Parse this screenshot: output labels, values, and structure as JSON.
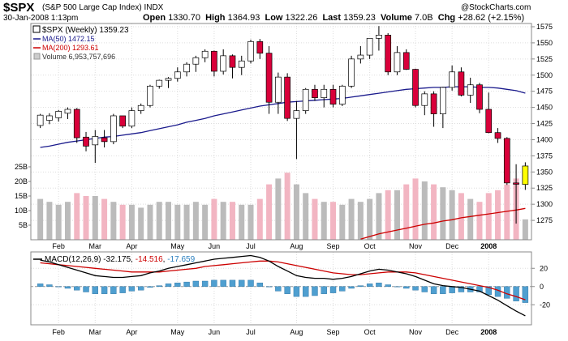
{
  "header": {
    "symbol": "$SPX",
    "name": "(S&P 500 Large Cap Index)",
    "exchange": "INDX",
    "date": "30-Jan-2008 1:13pm",
    "watermark": "@StockCharts.com",
    "open_label": "Open",
    "open": "1330.70",
    "high_label": "High",
    "high": "1364.93",
    "low_label": "Low",
    "low": "1322.26",
    "last_label": "Last",
    "last": "1359.23",
    "volume_label": "Volume",
    "volume": "7.0B",
    "chg_label": "Chg",
    "chg": "+28.62 (+2.15%)"
  },
  "legend": {
    "price": "$SPX (Weekly) 1359.23",
    "ma50": "MA(50) 1472.15",
    "ma200": "MA(200) 1293.61",
    "volume": "Volume 6,953,757,696"
  },
  "macd_legend": {
    "label": "MACD(12,26,9)",
    "macd": "-32.175",
    "signal": "-14.516",
    "hist": "-17.659"
  },
  "colors": {
    "up": "#ffffff",
    "down": "#d9003a",
    "last": "#ffff00",
    "ma50": "#1a1a8c",
    "ma200": "#cc0000",
    "vol_up": "#bbbbbb",
    "vol_down": "#f2b5c2",
    "hist": "#4f9fd0",
    "macd": "#000000",
    "signal": "#cc0000",
    "grid": "#dddddd"
  },
  "chart_data": {
    "type": "candlestick",
    "title": "$SPX (Weekly)",
    "period": "weekly",
    "ylim": [
      1245,
      1580
    ],
    "yticks": [
      1275,
      1300,
      1325,
      1350,
      1375,
      1400,
      1425,
      1450,
      1475,
      1500,
      1525,
      1550,
      1575
    ],
    "volume_ylim": [
      0,
      25
    ],
    "volume_ticks": [
      "5B",
      "10B",
      "15B",
      "20B",
      "25B"
    ],
    "volume_tick_values": [
      5,
      10,
      15,
      20,
      25
    ],
    "macd_ylim": [
      -42,
      38
    ],
    "macd_ticks": [
      -20,
      0,
      20
    ],
    "month_labels": [
      {
        "label": "Feb",
        "week": 2
      },
      {
        "label": "Mar",
        "week": 6
      },
      {
        "label": "Apr",
        "week": 10
      },
      {
        "label": "May",
        "week": 15
      },
      {
        "label": "Jun",
        "week": 19
      },
      {
        "label": "Jul",
        "week": 23
      },
      {
        "label": "Aug",
        "week": 28
      },
      {
        "label": "Sep",
        "week": 32
      },
      {
        "label": "Oct",
        "week": 36
      },
      {
        "label": "Nov",
        "week": 41
      },
      {
        "label": "Dec",
        "week": 45
      },
      {
        "label": "2008",
        "week": 49
      }
    ],
    "candles": [
      {
        "o": 1422,
        "h": 1440,
        "l": 1418,
        "c": 1438,
        "v": 14
      },
      {
        "o": 1430,
        "h": 1441,
        "l": 1424,
        "c": 1437,
        "v": 13
      },
      {
        "o": 1434,
        "h": 1446,
        "l": 1428,
        "c": 1444,
        "v": 12
      },
      {
        "o": 1441,
        "h": 1450,
        "l": 1432,
        "c": 1447,
        "v": 13
      },
      {
        "o": 1447,
        "h": 1449,
        "l": 1395,
        "c": 1403,
        "v": 16
      },
      {
        "o": 1404,
        "h": 1412,
        "l": 1382,
        "c": 1390,
        "v": 15
      },
      {
        "o": 1392,
        "h": 1415,
        "l": 1364,
        "c": 1405,
        "v": 15
      },
      {
        "o": 1403,
        "h": 1415,
        "l": 1388,
        "c": 1397,
        "v": 14
      },
      {
        "o": 1397,
        "h": 1440,
        "l": 1393,
        "c": 1437,
        "v": 13
      },
      {
        "o": 1437,
        "h": 1437,
        "l": 1418,
        "c": 1421,
        "v": 12
      },
      {
        "o": 1421,
        "h": 1450,
        "l": 1418,
        "c": 1445,
        "v": 12
      },
      {
        "o": 1445,
        "h": 1456,
        "l": 1440,
        "c": 1453,
        "v": 11
      },
      {
        "o": 1453,
        "h": 1485,
        "l": 1450,
        "c": 1483,
        "v": 12
      },
      {
        "o": 1483,
        "h": 1493,
        "l": 1479,
        "c": 1492,
        "v": 13
      },
      {
        "o": 1492,
        "h": 1497,
        "l": 1480,
        "c": 1495,
        "v": 13
      },
      {
        "o": 1495,
        "h": 1512,
        "l": 1490,
        "c": 1505,
        "v": 12
      },
      {
        "o": 1505,
        "h": 1520,
        "l": 1498,
        "c": 1517,
        "v": 12
      },
      {
        "o": 1517,
        "h": 1530,
        "l": 1505,
        "c": 1527,
        "v": 13
      },
      {
        "o": 1527,
        "h": 1540,
        "l": 1520,
        "c": 1537,
        "v": 12
      },
      {
        "o": 1537,
        "h": 1538,
        "l": 1498,
        "c": 1506,
        "v": 14
      },
      {
        "o": 1506,
        "h": 1540,
        "l": 1501,
        "c": 1530,
        "v": 13
      },
      {
        "o": 1530,
        "h": 1532,
        "l": 1495,
        "c": 1512,
        "v": 13
      },
      {
        "o": 1512,
        "h": 1530,
        "l": 1500,
        "c": 1522,
        "v": 12
      },
      {
        "o": 1522,
        "h": 1555,
        "l": 1518,
        "c": 1552,
        "v": 12
      },
      {
        "o": 1552,
        "h": 1556,
        "l": 1525,
        "c": 1534,
        "v": 14
      },
      {
        "o": 1534,
        "h": 1545,
        "l": 1440,
        "c": 1458,
        "v": 19
      },
      {
        "o": 1458,
        "h": 1504,
        "l": 1440,
        "c": 1497,
        "v": 21
      },
      {
        "o": 1497,
        "h": 1503,
        "l": 1429,
        "c": 1433,
        "v": 23
      },
      {
        "o": 1433,
        "h": 1460,
        "l": 1370,
        "c": 1445,
        "v": 19
      },
      {
        "o": 1445,
        "h": 1480,
        "l": 1440,
        "c": 1478,
        "v": 16
      },
      {
        "o": 1478,
        "h": 1485,
        "l": 1460,
        "c": 1465,
        "v": 14
      },
      {
        "o": 1465,
        "h": 1485,
        "l": 1450,
        "c": 1478,
        "v": 13
      },
      {
        "o": 1478,
        "h": 1485,
        "l": 1450,
        "c": 1455,
        "v": 13
      },
      {
        "o": 1455,
        "h": 1485,
        "l": 1452,
        "c": 1483,
        "v": 12
      },
      {
        "o": 1483,
        "h": 1530,
        "l": 1480,
        "c": 1525,
        "v": 14
      },
      {
        "o": 1525,
        "h": 1545,
        "l": 1518,
        "c": 1531,
        "v": 13
      },
      {
        "o": 1531,
        "h": 1557,
        "l": 1525,
        "c": 1557,
        "v": 14
      },
      {
        "o": 1557,
        "h": 1576,
        "l": 1538,
        "c": 1562,
        "v": 16
      },
      {
        "o": 1562,
        "h": 1565,
        "l": 1500,
        "c": 1505,
        "v": 17
      },
      {
        "o": 1505,
        "h": 1545,
        "l": 1500,
        "c": 1535,
        "v": 17
      },
      {
        "o": 1535,
        "h": 1540,
        "l": 1508,
        "c": 1509,
        "v": 19
      },
      {
        "o": 1509,
        "h": 1510,
        "l": 1450,
        "c": 1453,
        "v": 21
      },
      {
        "o": 1453,
        "h": 1475,
        "l": 1438,
        "c": 1471,
        "v": 20
      },
      {
        "o": 1471,
        "h": 1475,
        "l": 1420,
        "c": 1440,
        "v": 19
      },
      {
        "o": 1440,
        "h": 1482,
        "l": 1418,
        "c": 1481,
        "v": 18
      },
      {
        "o": 1481,
        "h": 1515,
        "l": 1476,
        "c": 1505,
        "v": 17
      },
      {
        "o": 1505,
        "h": 1512,
        "l": 1467,
        "c": 1469,
        "v": 16
      },
      {
        "o": 1469,
        "h": 1496,
        "l": 1457,
        "c": 1485,
        "v": 14
      },
      {
        "o": 1485,
        "h": 1488,
        "l": 1441,
        "c": 1447,
        "v": 13
      },
      {
        "o": 1447,
        "h": 1473,
        "l": 1410,
        "c": 1411,
        "v": 16
      },
      {
        "o": 1411,
        "h": 1418,
        "l": 1395,
        "c": 1402,
        "v": 17
      },
      {
        "o": 1402,
        "h": 1404,
        "l": 1330,
        "c": 1333,
        "v": 19
      },
      {
        "o": 1333,
        "h": 1362,
        "l": 1270,
        "c": 1331,
        "v": 21
      },
      {
        "o": 1330.7,
        "h": 1364.93,
        "l": 1322.26,
        "c": 1359.23,
        "v": 7
      }
    ],
    "ma50": [
      1388,
      1390,
      1393,
      1396,
      1398,
      1400,
      1402,
      1404,
      1405,
      1407,
      1409,
      1411,
      1414,
      1417,
      1420,
      1423,
      1427,
      1430,
      1433,
      1437,
      1440,
      1443,
      1446,
      1449,
      1452,
      1454,
      1456,
      1458,
      1459,
      1460,
      1461,
      1462,
      1463,
      1464,
      1466,
      1468,
      1470,
      1472,
      1474,
      1476,
      1478,
      1479,
      1480,
      1481,
      1481,
      1482,
      1482,
      1482,
      1481,
      1481,
      1480,
      1478,
      1476,
      1472.15
    ],
    "ma200": [
      null,
      null,
      null,
      null,
      null,
      null,
      null,
      null,
      null,
      null,
      null,
      null,
      null,
      null,
      null,
      null,
      null,
      null,
      null,
      null,
      null,
      null,
      null,
      null,
      null,
      null,
      null,
      null,
      null,
      null,
      null,
      null,
      null,
      null,
      null,
      1246,
      1250,
      1254,
      1257,
      1260,
      1263,
      1266,
      1269,
      1271,
      1274,
      1276,
      1279,
      1281,
      1283,
      1285,
      1287,
      1289,
      1291,
      1293.61
    ],
    "macd": [
      29,
      27,
      24,
      21,
      18,
      15,
      12,
      11,
      10,
      10,
      11,
      12,
      15,
      17,
      20,
      22,
      24,
      26,
      28,
      30,
      31,
      32,
      33,
      34,
      32,
      28,
      22,
      17,
      12,
      10,
      9,
      9,
      8,
      9,
      11,
      14,
      17,
      19,
      18,
      16,
      14,
      11,
      7,
      3,
      1,
      0,
      -1,
      -3,
      -5,
      -10,
      -15,
      -21,
      -27,
      -32.175
    ],
    "signal": [
      26,
      25,
      24,
      23,
      22,
      21,
      20,
      19,
      18,
      17,
      16,
      16,
      16,
      16,
      17,
      18,
      19,
      20,
      22,
      23,
      24,
      25,
      26,
      27,
      28,
      28,
      27,
      25,
      23,
      21,
      19,
      17,
      15,
      14,
      13,
      13,
      14,
      15,
      16,
      16,
      16,
      15,
      13,
      11,
      9,
      7,
      5,
      3,
      1,
      -1,
      -4,
      -8,
      -11,
      -14.516
    ],
    "hist": [
      3,
      2,
      0,
      -2,
      -4,
      -6,
      -8,
      -8,
      -8,
      -7,
      -5,
      -4,
      -1,
      1,
      3,
      4,
      5,
      6,
      6,
      7,
      7,
      7,
      7,
      7,
      4,
      0,
      -5,
      -8,
      -11,
      -11,
      -10,
      -8,
      -7,
      -5,
      -2,
      1,
      3,
      4,
      2,
      0,
      -2,
      -4,
      -6,
      -8,
      -8,
      -7,
      -6,
      -6,
      -6,
      -9,
      -11,
      -13,
      -16,
      -17.659
    ]
  }
}
